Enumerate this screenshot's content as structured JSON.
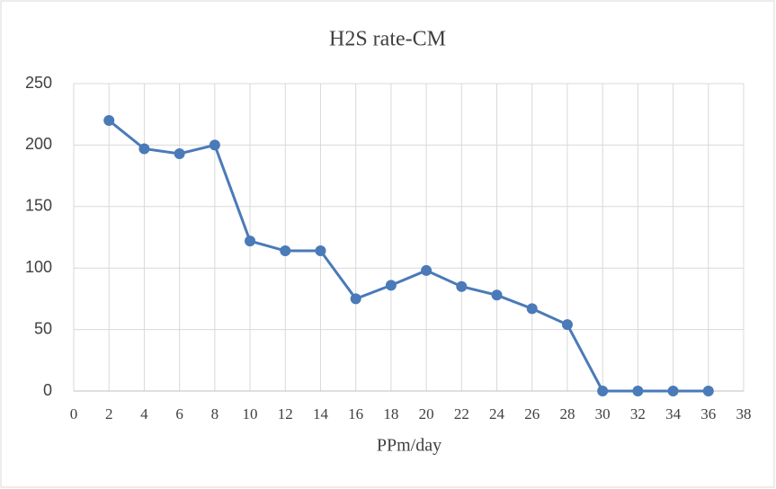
{
  "chart_data": {
    "type": "line",
    "title": "H2S rate-CM",
    "x_label": "PPm/day",
    "x": [
      2,
      4,
      6,
      8,
      10,
      12,
      14,
      16,
      18,
      20,
      22,
      24,
      26,
      28,
      30,
      32,
      34,
      36
    ],
    "series": [
      {
        "color": "#4a7ab8",
        "values": [
          220,
          197,
          193,
          200,
          122,
          114,
          114,
          75,
          86,
          98,
          85,
          78,
          67,
          54,
          0,
          0,
          0,
          0
        ]
      }
    ],
    "xlim": [
      0,
      38
    ],
    "xticks": [
      0,
      2,
      4,
      6,
      8,
      10,
      12,
      14,
      16,
      18,
      20,
      22,
      24,
      26,
      28,
      30,
      32,
      34,
      36,
      38
    ],
    "ylim": [
      0,
      250
    ],
    "yticks": [
      0,
      50,
      100,
      150,
      200,
      250
    ],
    "grid": true
  }
}
